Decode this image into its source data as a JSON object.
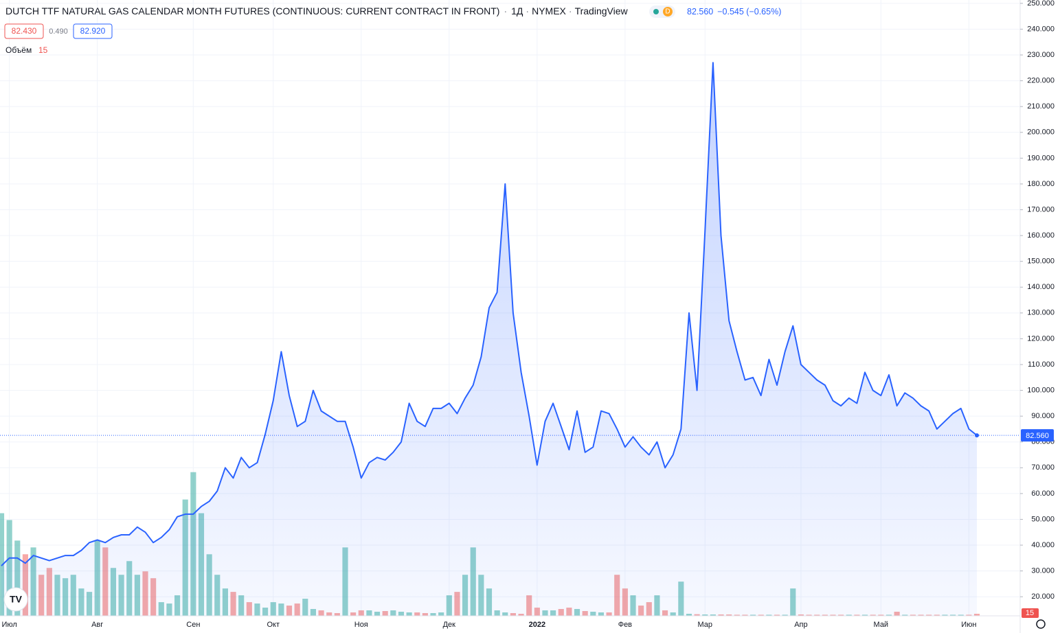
{
  "header": {
    "title": "DUTCH TTF NATURAL GAS CALENDAR MONTH FUTURES (CONTINUOUS: CURRENT CONTRACT IN FRONT)",
    "interval": "1Д",
    "exchange": "NYMEX",
    "source": "TradingView",
    "badge": "D",
    "last": "82.560",
    "change": "−0.545 (−0.65%)",
    "open_box": "82.430",
    "spread": "0.490",
    "close_box": "82.920"
  },
  "chart_data": {
    "type": "line",
    "categories": [
      null,
      "Июл",
      null,
      null,
      null,
      null,
      null,
      null,
      null,
      null,
      null,
      null,
      "Авг",
      null,
      null,
      null,
      null,
      null,
      null,
      null,
      null,
      null,
      null,
      null,
      "Сен",
      null,
      null,
      null,
      null,
      null,
      null,
      null,
      null,
      null,
      "Окт",
      null,
      null,
      null,
      null,
      null,
      null,
      null,
      null,
      null,
      null,
      "Ноя",
      null,
      null,
      null,
      null,
      null,
      null,
      null,
      null,
      null,
      null,
      "Дек",
      null,
      null,
      null,
      null,
      null,
      null,
      null,
      null,
      null,
      null,
      "2022",
      null,
      null,
      null,
      null,
      null,
      null,
      null,
      null,
      null,
      null,
      "Фев",
      null,
      null,
      null,
      null,
      null,
      null,
      null,
      null,
      null,
      "Мар",
      null,
      null,
      null,
      null,
      null,
      null,
      null,
      null,
      null,
      null,
      null,
      "Апр",
      null,
      null,
      null,
      null,
      null,
      null,
      null,
      null,
      null,
      "Май",
      null,
      null,
      null,
      null,
      null,
      null,
      null,
      null,
      null,
      null,
      "Июн",
      null
    ],
    "series": [
      {
        "color": "#2962ff",
        "values": [
          32,
          35,
          35,
          33,
          36,
          35,
          34,
          35,
          36,
          36,
          38,
          41,
          42,
          41,
          43,
          44,
          44,
          47,
          45,
          41,
          43,
          46,
          51,
          52,
          52,
          55,
          57,
          61,
          70,
          66,
          74,
          70,
          72,
          83,
          96,
          115,
          98,
          86,
          88,
          100,
          92,
          90,
          88,
          88,
          78,
          66,
          72,
          74,
          73,
          76,
          80,
          95,
          88,
          86,
          93,
          93,
          95,
          91,
          97,
          102,
          113,
          132,
          138,
          180,
          130,
          107,
          90,
          71,
          88,
          95,
          86,
          77,
          92,
          76,
          78,
          92,
          91,
          85,
          78,
          82,
          78,
          75,
          80,
          70,
          75,
          85,
          130,
          100,
          162,
          227,
          160,
          127,
          115,
          104,
          105,
          98,
          112,
          102,
          115,
          125,
          110,
          107,
          104,
          102,
          96,
          94,
          97,
          95,
          107,
          100,
          98,
          106,
          94,
          99,
          97,
          94,
          92,
          85,
          88,
          91,
          93,
          85,
          82.56
        ],
        "last_label": "82.560"
      }
    ],
    "ylim": [
      12.6,
      251.3
    ],
    "yticks": [
      {
        "value": 20,
        "label": "20.000"
      },
      {
        "value": 30,
        "label": "30.000"
      },
      {
        "value": 40,
        "label": "40.000"
      },
      {
        "value": 50,
        "label": "50.000"
      },
      {
        "value": 60,
        "label": "60.000"
      },
      {
        "value": 70,
        "label": "70.000"
      },
      {
        "value": 80,
        "label": "80.000"
      },
      {
        "value": 90,
        "label": "90.000"
      },
      {
        "value": 100,
        "label": "100.000"
      },
      {
        "value": 110,
        "label": "110.000"
      },
      {
        "value": 120,
        "label": "120.000"
      },
      {
        "value": 130,
        "label": "130.000"
      },
      {
        "value": 140,
        "label": "140.000"
      },
      {
        "value": 150,
        "label": "150.000"
      },
      {
        "value": 160,
        "label": "160.000"
      },
      {
        "value": 170,
        "label": "170.000"
      },
      {
        "value": 180,
        "label": "180.000"
      },
      {
        "value": 190,
        "label": "190.000"
      },
      {
        "value": 200,
        "label": "200.000"
      },
      {
        "value": 210,
        "label": "210.000"
      },
      {
        "value": 220,
        "label": "220.000"
      },
      {
        "value": 230,
        "label": "230.000"
      },
      {
        "value": 240,
        "label": "240.000"
      },
      {
        "value": 250,
        "label": "250.000"
      }
    ],
    "grid": true,
    "volume": {
      "name": "Объём",
      "ylim": [
        0,
        4500
      ],
      "up_color": "rgba(38,166,154,0.5)",
      "down_color": "rgba(239,83,80,0.5)",
      "values": [
        750,
        700,
        550,
        450,
        500,
        300,
        350,
        300,
        275,
        300,
        200,
        175,
        550,
        500,
        350,
        300,
        400,
        300,
        325,
        275,
        100,
        90,
        150,
        850,
        1050,
        750,
        450,
        300,
        200,
        175,
        150,
        100,
        90,
        60,
        100,
        90,
        75,
        90,
        125,
        50,
        40,
        25,
        20,
        500,
        25,
        40,
        40,
        30,
        35,
        40,
        30,
        25,
        25,
        20,
        20,
        25,
        150,
        175,
        300,
        500,
        300,
        200,
        40,
        25,
        20,
        15,
        150,
        60,
        40,
        40,
        50,
        60,
        50,
        35,
        30,
        25,
        25,
        300,
        200,
        150,
        75,
        100,
        150,
        40,
        25,
        250,
        15,
        12,
        10,
        10,
        10,
        10,
        8,
        8,
        8,
        8,
        8,
        8,
        8,
        200,
        10,
        8,
        8,
        8,
        8,
        8,
        8,
        8,
        8,
        8,
        8,
        8,
        30,
        8,
        8,
        8,
        8,
        8,
        8,
        8,
        8,
        8,
        15
      ]
    }
  }
}
